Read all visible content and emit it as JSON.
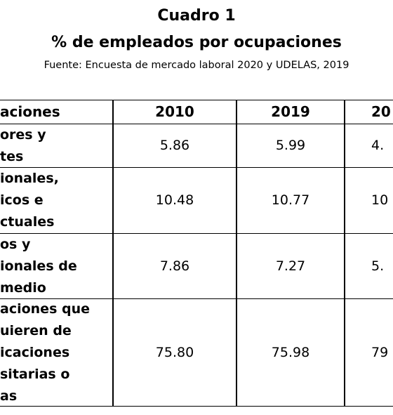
{
  "header": {
    "title": "Cuadro 1",
    "subtitle": "% de empleados por ocupaciones",
    "source": "Fuente: Encuesta de mercado laboral 2020 y UDELAS, 2019"
  },
  "table": {
    "columns": [
      "aciones",
      "2010",
      "2019",
      "20"
    ],
    "rows": [
      [
        [
          "ores y",
          "tes"
        ],
        "5.86",
        "5.99",
        "4."
      ],
      [
        [
          "ionales,",
          "icos e",
          "ctuales"
        ],
        "10.48",
        "10.77",
        "10"
      ],
      [
        [
          "os y",
          "ionales de",
          "medio"
        ],
        "7.86",
        "7.27",
        "5."
      ],
      [
        [
          "aciones que",
          "uieren de",
          "icaciones",
          "sitarias o",
          "as"
        ],
        "75.80",
        "75.98",
        "79"
      ]
    ]
  }
}
